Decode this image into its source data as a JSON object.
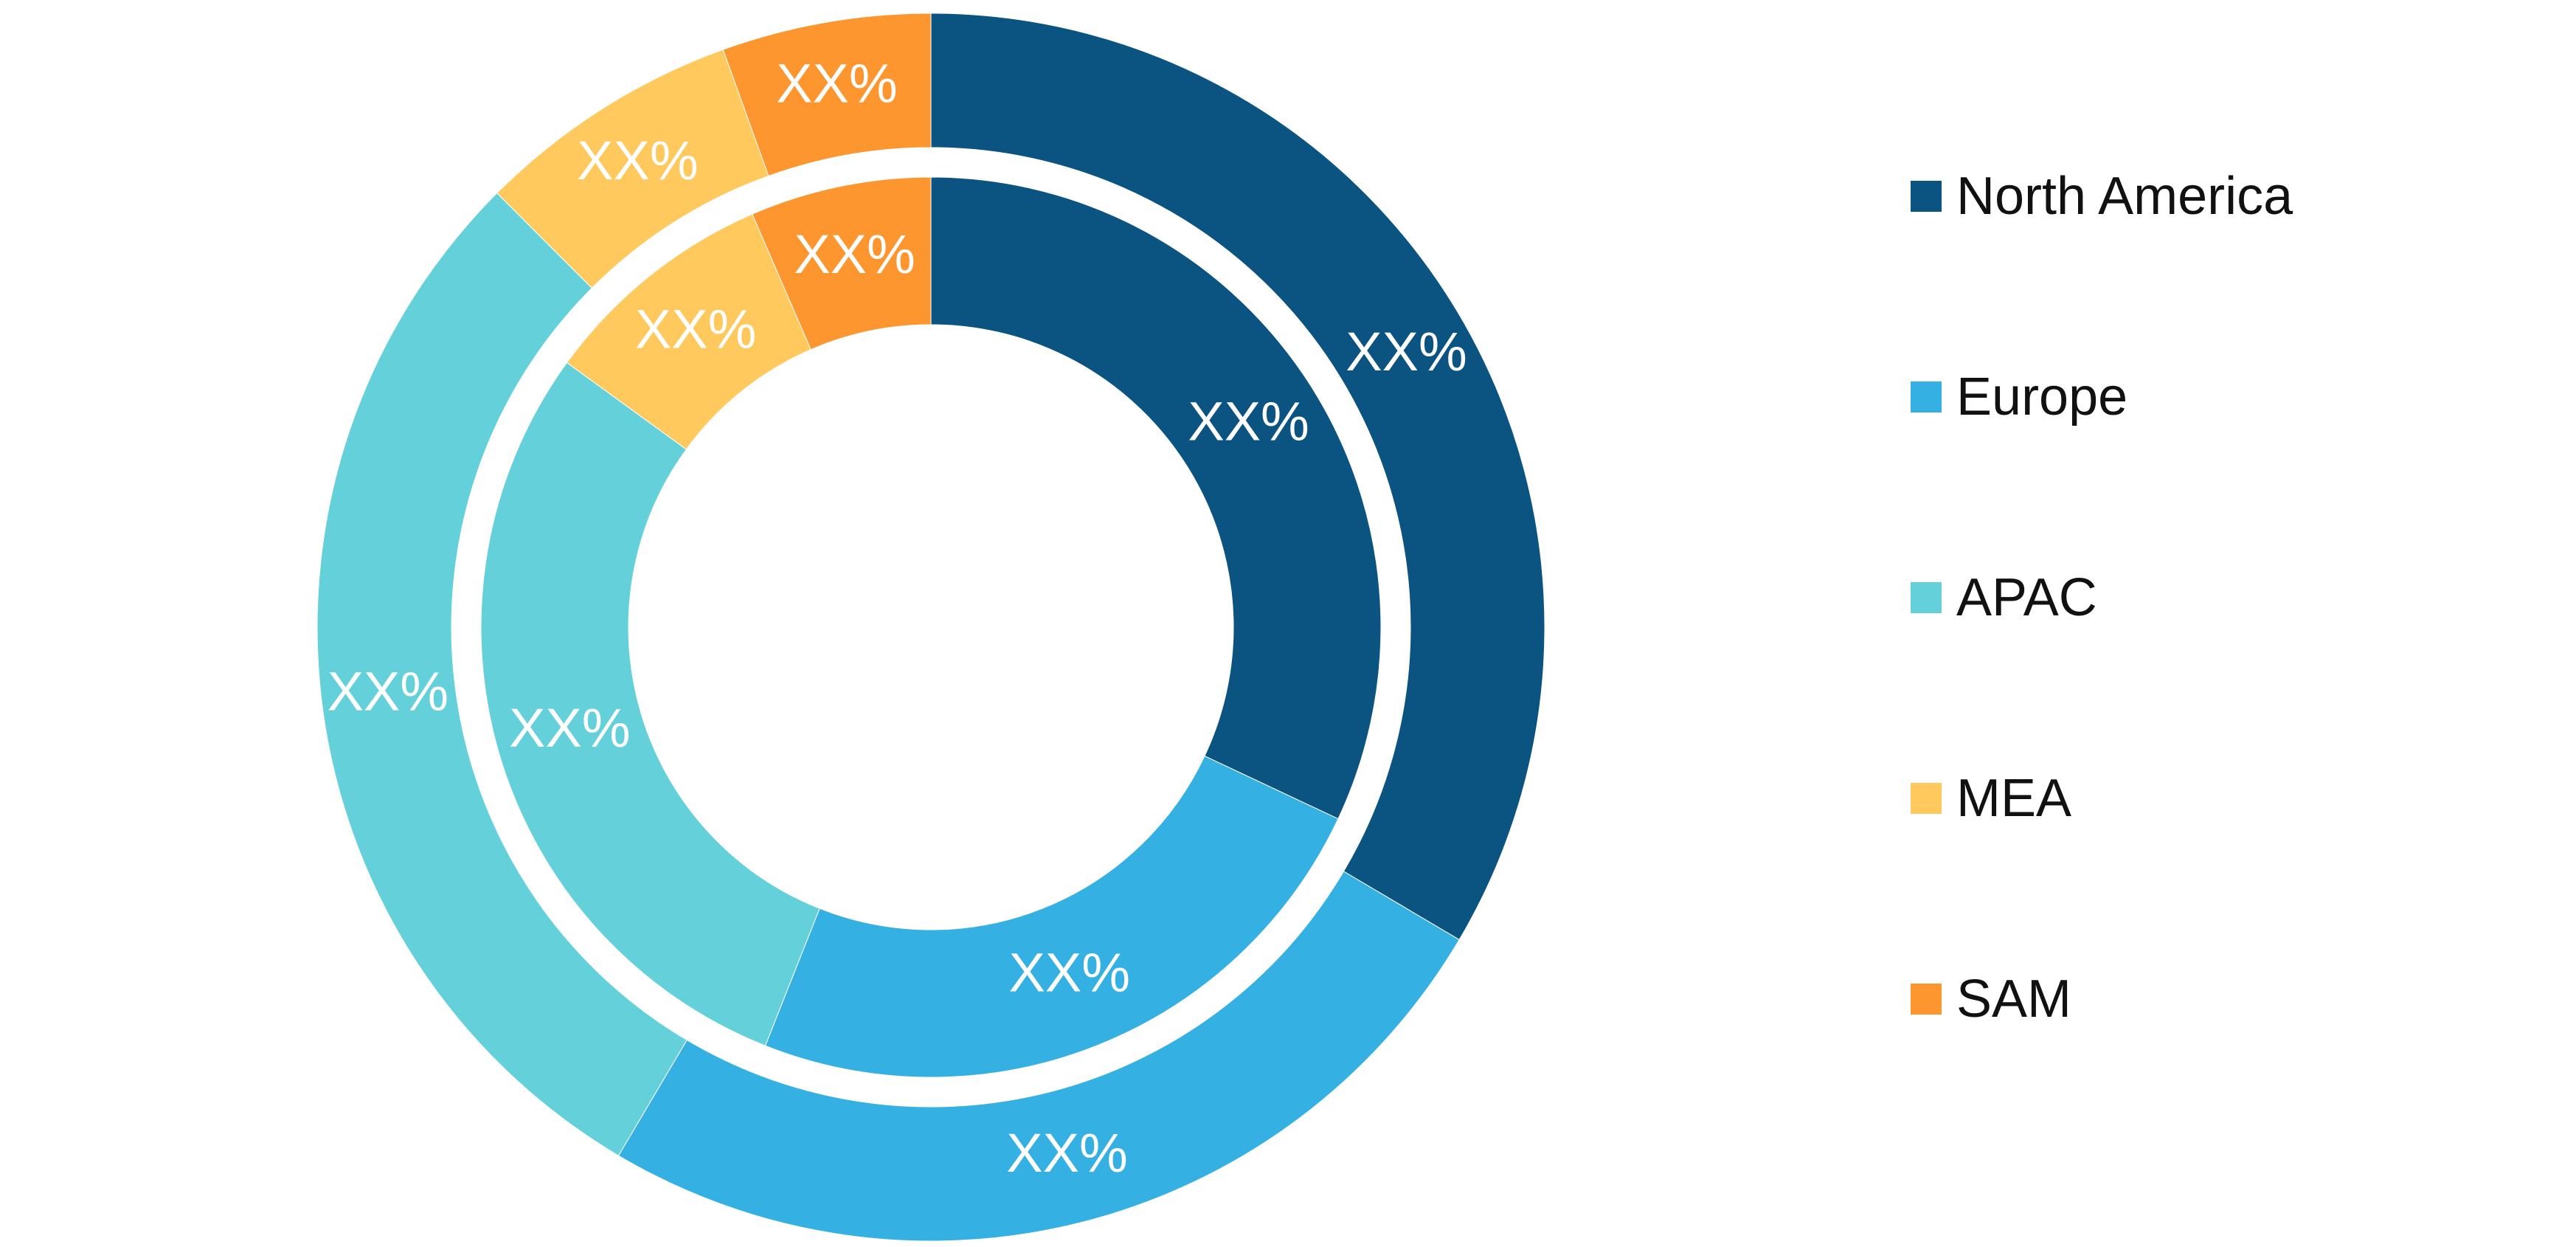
{
  "chart_data": {
    "type": "donut",
    "value_label": "XX%",
    "series": [
      {
        "ring": "outer",
        "values": [
          33.5,
          25.0,
          29.0,
          7.0,
          5.5
        ]
      },
      {
        "ring": "inner",
        "values": [
          32.0,
          24.0,
          29.0,
          8.5,
          6.5
        ]
      }
    ],
    "categories": [
      "North America",
      "Europe",
      "APAC",
      "MEA",
      "SAM"
    ],
    "colors": [
      "#0b5381",
      "#35b0e2",
      "#64d1da",
      "#ffc95e",
      "#fd962f"
    ],
    "legend": {
      "position": "right"
    }
  }
}
